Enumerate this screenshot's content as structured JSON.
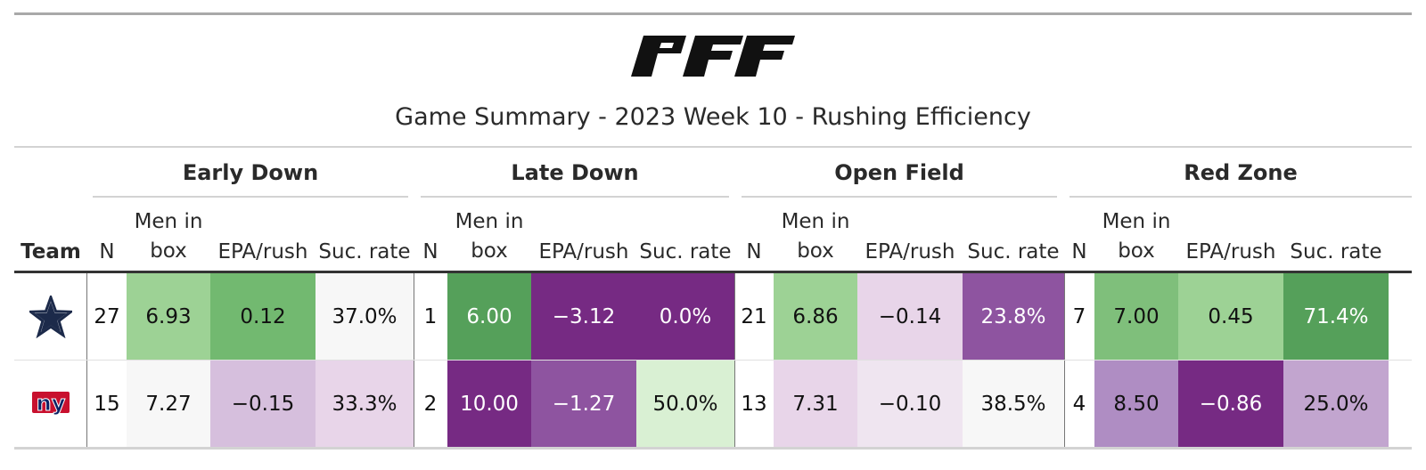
{
  "logo_text": "PFF",
  "title": "Game Summary - 2023 Week 10 - Rushing Efficiency",
  "groups": [
    "Early Down",
    "Late Down",
    "Open Field",
    "Red Zone"
  ],
  "columns": {
    "team": "Team",
    "n": "N",
    "box_line1": "Men in",
    "box_line2": "box",
    "epa": "EPA/rush",
    "suc": "Suc. rate"
  },
  "rows": [
    {
      "team_icon": "cowboys-star-logo",
      "cells": [
        {
          "v": "27",
          "bg": "#ffffff"
        },
        {
          "v": "6.93",
          "bg": "#9dd295"
        },
        {
          "v": "0.12",
          "bg": "#72b970"
        },
        {
          "v": "37.0%",
          "bg": "#f7f7f7"
        },
        {
          "v": "1",
          "bg": "#ffffff"
        },
        {
          "v": "6.00",
          "bg": "#55a05a"
        },
        {
          "v": "−3.12",
          "bg": "#762a83"
        },
        {
          "v": "0.0%",
          "bg": "#762a83"
        },
        {
          "v": "21",
          "bg": "#ffffff"
        },
        {
          "v": "6.86",
          "bg": "#9dd295"
        },
        {
          "v": "−0.14",
          "bg": "#e8d5e9"
        },
        {
          "v": "23.8%",
          "bg": "#8e54a0"
        },
        {
          "v": "7",
          "bg": "#ffffff"
        },
        {
          "v": "7.00",
          "bg": "#7fbf7b"
        },
        {
          "v": "0.45",
          "bg": "#9dd295"
        },
        {
          "v": "71.4%",
          "bg": "#55a05a"
        }
      ]
    },
    {
      "team_icon": "giants-ny-logo",
      "cells": [
        {
          "v": "15",
          "bg": "#ffffff"
        },
        {
          "v": "7.27",
          "bg": "#f7f7f7"
        },
        {
          "v": "−0.15",
          "bg": "#d6bfdd"
        },
        {
          "v": "33.3%",
          "bg": "#e8d5e9"
        },
        {
          "v": "2",
          "bg": "#ffffff"
        },
        {
          "v": "10.00",
          "bg": "#762a83"
        },
        {
          "v": "−1.27",
          "bg": "#8e54a0"
        },
        {
          "v": "50.0%",
          "bg": "#d9f0d3"
        },
        {
          "v": "13",
          "bg": "#ffffff"
        },
        {
          "v": "7.31",
          "bg": "#e8d5e9"
        },
        {
          "v": "−0.10",
          "bg": "#efe5f0"
        },
        {
          "v": "38.5%",
          "bg": "#f7f7f7"
        },
        {
          "v": "4",
          "bg": "#ffffff"
        },
        {
          "v": "8.50",
          "bg": "#af8dc3"
        },
        {
          "v": "−0.86",
          "bg": "#762a83"
        },
        {
          "v": "25.0%",
          "bg": "#c2a5cf"
        }
      ]
    }
  ]
}
